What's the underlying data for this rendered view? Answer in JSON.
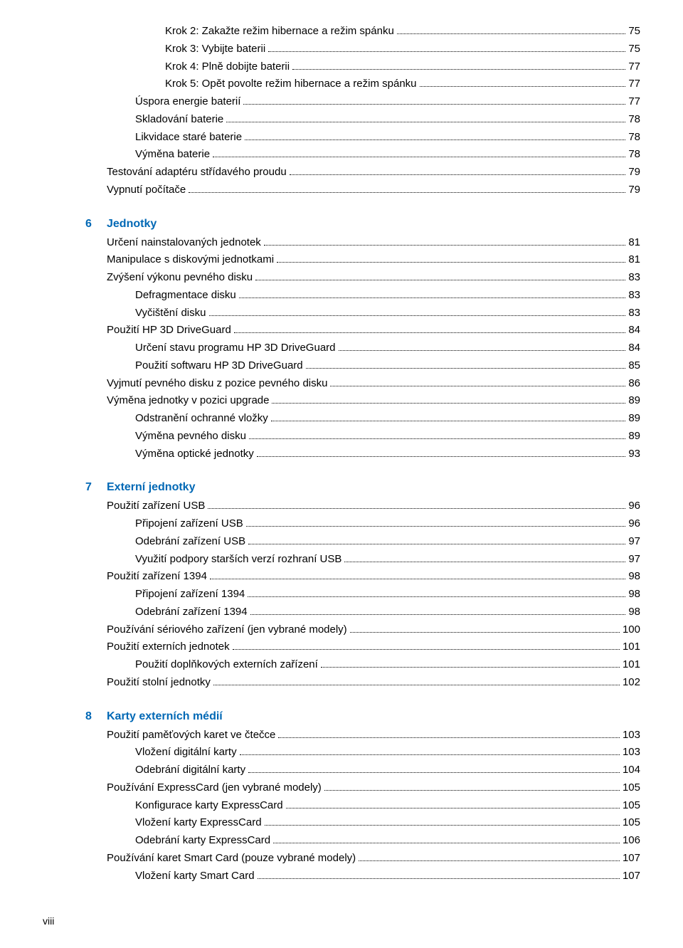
{
  "colors": {
    "heading": "#0068b5",
    "text": "#000000",
    "background": "#ffffff"
  },
  "fontsize_body": 15,
  "fontsize_heading": 16,
  "pre_lines": [
    {
      "indent": 3,
      "label": "Krok 2: Zakažte režim hibernace a režim spánku",
      "page": "75"
    },
    {
      "indent": 3,
      "label": "Krok 3: Vybijte baterii",
      "page": "75"
    },
    {
      "indent": 3,
      "label": "Krok 4: Plně dobijte baterii",
      "page": "77"
    },
    {
      "indent": 3,
      "label": "Krok 5: Opět povolte režim hibernace a režim spánku",
      "page": "77"
    },
    {
      "indent": 2,
      "label": "Úspora energie baterií",
      "page": "77"
    },
    {
      "indent": 2,
      "label": "Skladování baterie",
      "page": "78"
    },
    {
      "indent": 2,
      "label": "Likvidace staré baterie",
      "page": "78"
    },
    {
      "indent": 2,
      "label": "Výměna baterie",
      "page": "78"
    },
    {
      "indent": 0,
      "label": "Testování adaptéru střídavého proudu",
      "page": "79"
    },
    {
      "indent": 0,
      "label": "Vypnutí počítače",
      "page": "79"
    }
  ],
  "sections": [
    {
      "num": "6",
      "title": "Jednotky",
      "lines": [
        {
          "indent": 0,
          "label": "Určení nainstalovaných jednotek",
          "page": "81"
        },
        {
          "indent": 0,
          "label": "Manipulace s diskovými jednotkami",
          "page": "81"
        },
        {
          "indent": 0,
          "label": "Zvýšení výkonu pevného disku",
          "page": "83"
        },
        {
          "indent": 2,
          "label": "Defragmentace disku",
          "page": "83"
        },
        {
          "indent": 2,
          "label": "Vyčištění disku",
          "page": "83"
        },
        {
          "indent": 0,
          "label": "Použití HP 3D DriveGuard",
          "page": "84"
        },
        {
          "indent": 2,
          "label": "Určení stavu programu HP 3D DriveGuard",
          "page": "84"
        },
        {
          "indent": 2,
          "label": "Použití softwaru HP 3D DriveGuard",
          "page": "85"
        },
        {
          "indent": 0,
          "label": "Vyjmutí pevného disku z pozice pevného disku",
          "page": "86"
        },
        {
          "indent": 0,
          "label": "Výměna jednotky v pozici upgrade",
          "page": "89"
        },
        {
          "indent": 2,
          "label": "Odstranění ochranné vložky",
          "page": "89"
        },
        {
          "indent": 2,
          "label": "Výměna pevného disku",
          "page": "89"
        },
        {
          "indent": 2,
          "label": "Výměna optické jednotky",
          "page": "93"
        }
      ]
    },
    {
      "num": "7",
      "title": "Externí jednotky",
      "lines": [
        {
          "indent": 0,
          "label": "Použití zařízení USB",
          "page": "96"
        },
        {
          "indent": 2,
          "label": "Připojení zařízení USB",
          "page": "96"
        },
        {
          "indent": 2,
          "label": "Odebrání zařízení USB",
          "page": "97"
        },
        {
          "indent": 2,
          "label": "Využití podpory starších verzí rozhraní USB",
          "page": "97"
        },
        {
          "indent": 0,
          "label": "Použití zařízení 1394",
          "page": "98"
        },
        {
          "indent": 2,
          "label": "Připojení zařízení 1394",
          "page": "98"
        },
        {
          "indent": 2,
          "label": "Odebrání zařízení 1394",
          "page": "98"
        },
        {
          "indent": 0,
          "label": "Používání sériového zařízení (jen vybrané modely)",
          "page": "100"
        },
        {
          "indent": 0,
          "label": "Použití externích jednotek",
          "page": "101"
        },
        {
          "indent": 2,
          "label": "Použití doplňkových externích zařízení",
          "page": "101"
        },
        {
          "indent": 0,
          "label": "Použití stolní jednotky",
          "page": "102"
        }
      ]
    },
    {
      "num": "8",
      "title": "Karty externích médií",
      "lines": [
        {
          "indent": 0,
          "label": "Použití paměťových karet ve čtečce",
          "page": "103"
        },
        {
          "indent": 2,
          "label": "Vložení digitální karty",
          "page": "103"
        },
        {
          "indent": 2,
          "label": "Odebrání digitální karty",
          "page": "104"
        },
        {
          "indent": 0,
          "label": "Používání ExpressCard (jen vybrané modely)",
          "page": "105"
        },
        {
          "indent": 2,
          "label": "Konfigurace karty ExpressCard",
          "page": "105"
        },
        {
          "indent": 2,
          "label": "Vložení karty ExpressCard",
          "page": "105"
        },
        {
          "indent": 2,
          "label": "Odebrání karty ExpressCard",
          "page": "106"
        },
        {
          "indent": 0,
          "label": "Používání karet Smart Card (pouze vybrané modely)",
          "page": "107"
        },
        {
          "indent": 2,
          "label": "Vložení karty Smart Card",
          "page": "107"
        }
      ]
    }
  ],
  "footer": "viii"
}
